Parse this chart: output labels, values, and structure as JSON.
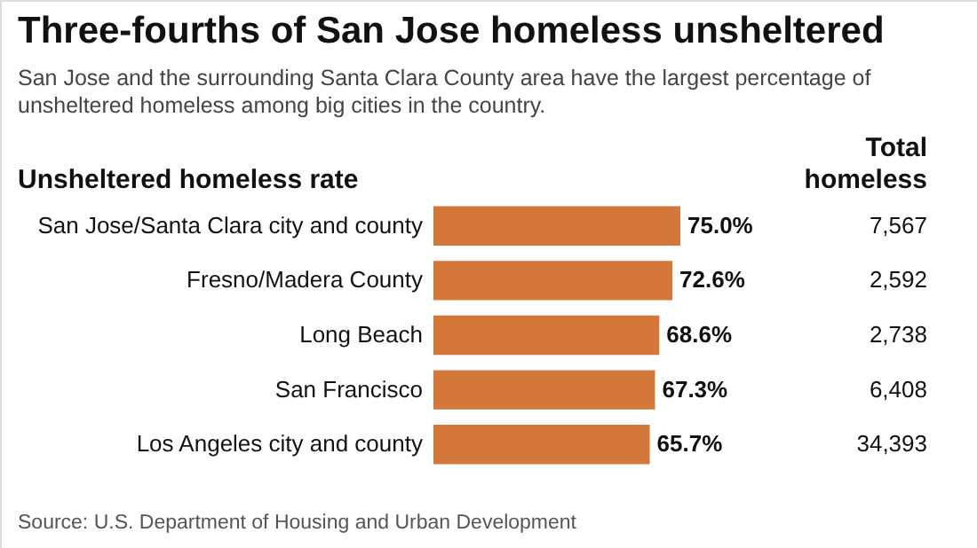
{
  "chart_data": {
    "type": "bar",
    "orientation": "horizontal",
    "title": "Three-fourths of San Jose homeless unsheltered",
    "subtitle": "San Jose and the surrounding Santa Clara County area have the largest percentage of unsheltered homeless among big cities in the country.",
    "ylabel": "Unsheltered homeless rate",
    "categories": [
      "San Jose/Santa Clara city and county",
      "Fresno/Madera County",
      "Long Beach",
      "San Francisco",
      "Los Angeles city and county"
    ],
    "values": [
      75.0,
      72.6,
      68.6,
      67.3,
      65.7
    ],
    "value_labels": [
      "75.0%",
      "72.6%",
      "68.6%",
      "67.3%",
      "65.7%"
    ],
    "color": "#d4773a",
    "annotations": [
      "Source: U.S. Department of Housing and Urban Development",
      "Total homeless",
      "7,567",
      "2,592",
      "2,738",
      "6,408",
      "34,393"
    ]
  }
}
